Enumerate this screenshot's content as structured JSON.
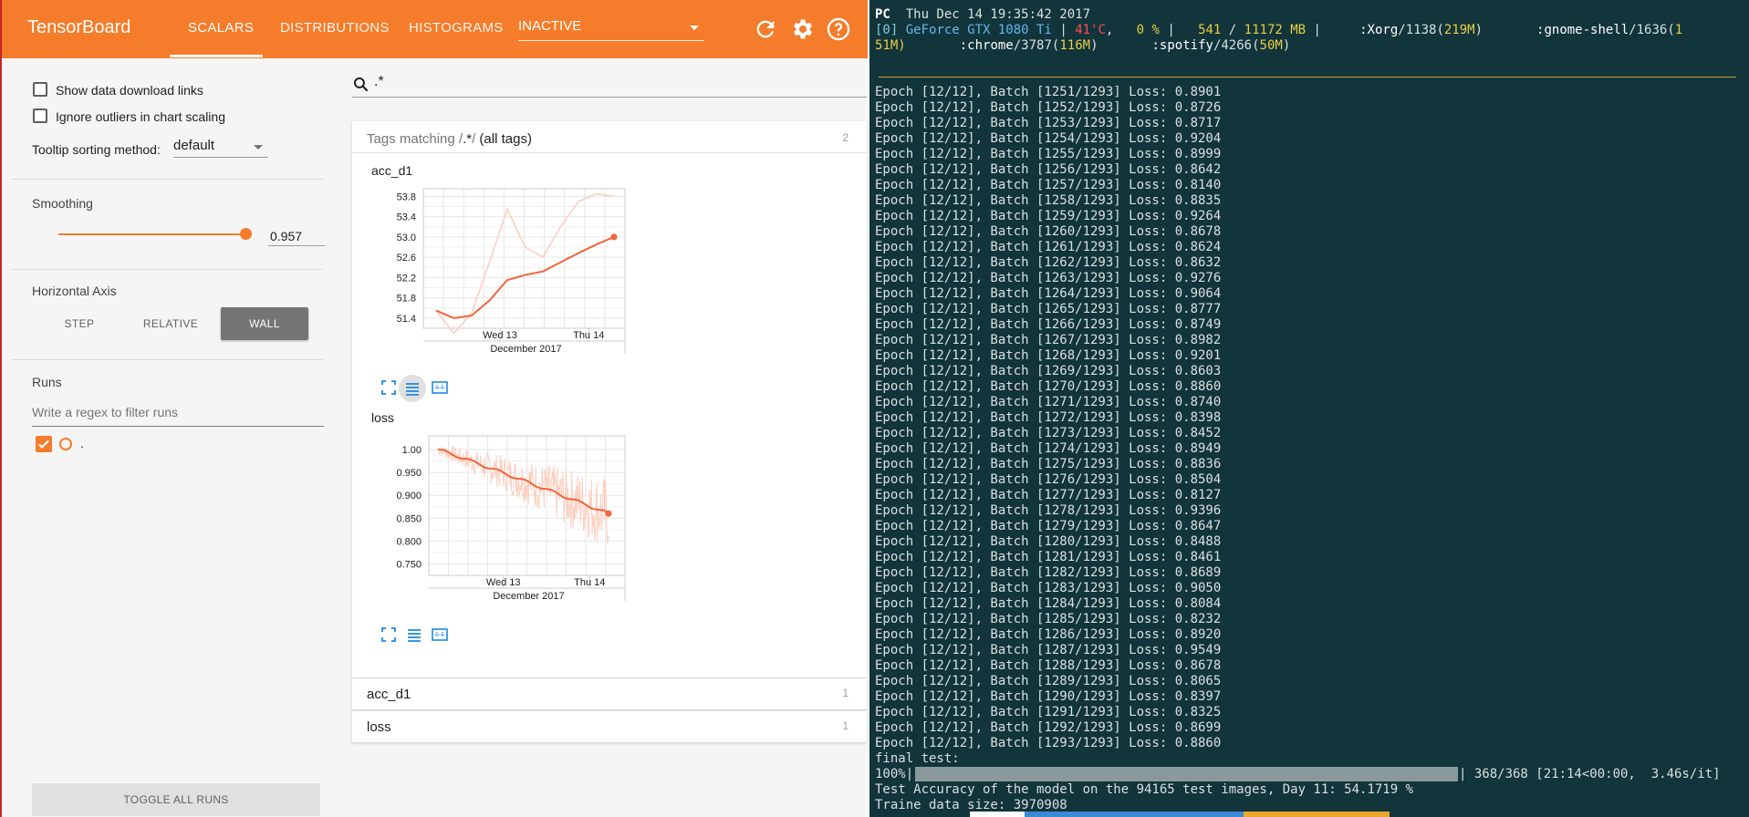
{
  "tensorboard": {
    "logo": "TensorBoard",
    "tabs": [
      {
        "label": "SCALARS",
        "active": true
      },
      {
        "label": "DISTRIBUTIONS",
        "active": false
      },
      {
        "label": "HISTOGRAMS",
        "active": false
      }
    ],
    "inactive_select": "INACTIVE",
    "header_icons": [
      "refresh-icon",
      "settings-icon",
      "help-icon"
    ],
    "accent_color": "#f57c2a",
    "sidebar": {
      "show_download_links": "Show data download links",
      "ignore_outliers": "Ignore outliers in chart scaling",
      "tooltip_sorting_label": "Tooltip sorting method:",
      "tooltip_sorting_value": "default",
      "smoothing_title": "Smoothing",
      "smoothing_value": "0.957",
      "horizontal_axis_title": "Horizontal Axis",
      "axis_options": [
        "STEP",
        "RELATIVE",
        "WALL"
      ],
      "axis_selected": "WALL",
      "runs_title": "Runs",
      "runs_filter_placeholder": "Write a regex to filter runs",
      "run_name": ".",
      "toggle_all_runs": "TOGGLE ALL RUNS"
    },
    "search_value": ".*",
    "tags_card": {
      "prefix": "Tags matching /",
      "pattern": ".*",
      "suffix": "/ ",
      "all_tags": "(all tags)",
      "count": "2"
    },
    "collapsed_cards": [
      {
        "name": "acc_d1",
        "count": "1"
      },
      {
        "name": "loss",
        "count": "1"
      }
    ]
  },
  "chart_data": [
    {
      "type": "line",
      "title": "acc_d1",
      "xlabel": "December 2017",
      "x_tick_labels": [
        "Wed 13",
        "Thu 14"
      ],
      "y_ticks": [
        "53.8",
        "53.4",
        "53.0",
        "52.6",
        "52.2",
        "51.8",
        "51.4"
      ],
      "ylim": [
        51.2,
        53.95
      ],
      "x": [
        0,
        1,
        2,
        3,
        4,
        5,
        6,
        7,
        8,
        9,
        10
      ],
      "series": [
        {
          "name": "raw",
          "values": [
            51.55,
            51.1,
            51.5,
            52.5,
            53.55,
            52.8,
            52.6,
            53.2,
            53.7,
            53.85,
            53.8
          ]
        },
        {
          "name": "smoothed",
          "values": [
            51.55,
            51.4,
            51.45,
            51.75,
            52.15,
            52.25,
            52.32,
            52.5,
            52.68,
            52.85,
            53.0
          ]
        }
      ]
    },
    {
      "type": "line",
      "title": "loss",
      "xlabel": "December 2017",
      "x_tick_labels": [
        "Wed 13",
        "Thu 14"
      ],
      "y_ticks": [
        "1.00",
        "0.950",
        "0.900",
        "0.850",
        "0.800",
        "0.750"
      ],
      "ylim": [
        0.725,
        1.03
      ],
      "smoothed_start": 1.0,
      "smoothed_end": 0.86,
      "raw_range": [
        0.74,
        1.02
      ]
    }
  ],
  "terminal": {
    "header_host": "PC",
    "header_time": "Thu Dec 14 19:35:42 2017",
    "gpu_index": "[0]",
    "gpu_name": "GeForce GTX 1080 Ti",
    "gpu_temp": "41'C",
    "gpu_util": "0 %",
    "gpu_mem_used": "541",
    "gpu_mem_total": "11172 MB",
    "gpu_procs_line1": [
      {
        "name": ":Xorg",
        "pid": "/1138",
        "mem": "219M"
      },
      {
        "name": ":gnome-shell",
        "pid": "/1636",
        "mem": "1"
      }
    ],
    "gpu_procs_line2_prefix": "51M)",
    "gpu_procs_line2": [
      {
        "name": ":chrome",
        "pid": "/3787",
        "mem": "116M"
      },
      {
        "name": ":spotify",
        "pid": "/4266",
        "mem": "50M"
      }
    ],
    "log_lines": [
      "Epoch [12/12], Batch [1251/1293] Loss: 0.8901",
      "Epoch [12/12], Batch [1252/1293] Loss: 0.8726",
      "Epoch [12/12], Batch [1253/1293] Loss: 0.8717",
      "Epoch [12/12], Batch [1254/1293] Loss: 0.9204",
      "Epoch [12/12], Batch [1255/1293] Loss: 0.8999",
      "Epoch [12/12], Batch [1256/1293] Loss: 0.8642",
      "Epoch [12/12], Batch [1257/1293] Loss: 0.8140",
      "Epoch [12/12], Batch [1258/1293] Loss: 0.8835",
      "Epoch [12/12], Batch [1259/1293] Loss: 0.9264",
      "Epoch [12/12], Batch [1260/1293] Loss: 0.8678",
      "Epoch [12/12], Batch [1261/1293] Loss: 0.8624",
      "Epoch [12/12], Batch [1262/1293] Loss: 0.8632",
      "Epoch [12/12], Batch [1263/1293] Loss: 0.9276",
      "Epoch [12/12], Batch [1264/1293] Loss: 0.9064",
      "Epoch [12/12], Batch [1265/1293] Loss: 0.8777",
      "Epoch [12/12], Batch [1266/1293] Loss: 0.8749",
      "Epoch [12/12], Batch [1267/1293] Loss: 0.8982",
      "Epoch [12/12], Batch [1268/1293] Loss: 0.9201",
      "Epoch [12/12], Batch [1269/1293] Loss: 0.8603",
      "Epoch [12/12], Batch [1270/1293] Loss: 0.8860",
      "Epoch [12/12], Batch [1271/1293] Loss: 0.8740",
      "Epoch [12/12], Batch [1272/1293] Loss: 0.8398",
      "Epoch [12/12], Batch [1273/1293] Loss: 0.8452",
      "Epoch [12/12], Batch [1274/1293] Loss: 0.8949",
      "Epoch [12/12], Batch [1275/1293] Loss: 0.8836",
      "Epoch [12/12], Batch [1276/1293] Loss: 0.8504",
      "Epoch [12/12], Batch [1277/1293] Loss: 0.8127",
      "Epoch [12/12], Batch [1278/1293] Loss: 0.9396",
      "Epoch [12/12], Batch [1279/1293] Loss: 0.8647",
      "Epoch [12/12], Batch [1280/1293] Loss: 0.8488",
      "Epoch [12/12], Batch [1281/1293] Loss: 0.8461",
      "Epoch [12/12], Batch [1282/1293] Loss: 0.8689",
      "Epoch [12/12], Batch [1283/1293] Loss: 0.9050",
      "Epoch [12/12], Batch [1284/1293] Loss: 0.8084",
      "Epoch [12/12], Batch [1285/1293] Loss: 0.8232",
      "Epoch [12/12], Batch [1286/1293] Loss: 0.8920",
      "Epoch [12/12], Batch [1287/1293] Loss: 0.9549",
      "Epoch [12/12], Batch [1288/1293] Loss: 0.8678",
      "Epoch [12/12], Batch [1289/1293] Loss: 0.8065",
      "Epoch [12/12], Batch [1290/1293] Loss: 0.8397",
      "Epoch [12/12], Batch [1291/1293] Loss: 0.8325",
      "Epoch [12/12], Batch [1292/1293] Loss: 0.8699",
      "Epoch [12/12], Batch [1293/1293] Loss: 0.8860"
    ],
    "final_test": "final test:",
    "progress_prefix": "100%|",
    "progress_suffix": "| 368/368 [21:14<00:00,  3.46s/it]",
    "progress_fraction": 1.0,
    "accuracy_line": "Test Accuracy of the model on the 94165 test images, Day 11: 54.1719 %",
    "train_size_line": "Traine data size: 3970908",
    "colors": {
      "background": "#12343b",
      "blue": "#62b9f0",
      "yellow": "#e9cf42",
      "red": "#ff4c4c"
    }
  }
}
